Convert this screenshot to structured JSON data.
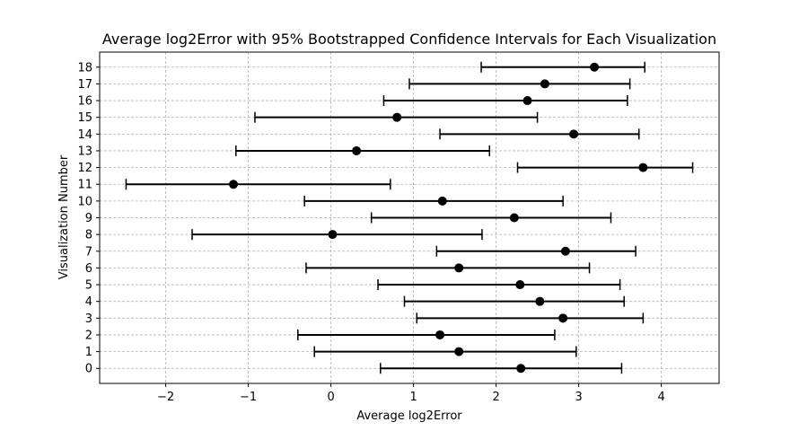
{
  "chart_data": {
    "type": "errorbar",
    "title": "Average log2Error with 95% Bootstrapped Confidence Intervals for Each Visualization",
    "xlabel": "Average log2Error",
    "ylabel": "Visualization Number",
    "xlim": [
      -2.8,
      4.7
    ],
    "ylim": [
      -0.9,
      18.9
    ],
    "x_ticks": [
      -2,
      -1,
      0,
      1,
      2,
      3,
      4
    ],
    "x_tick_labels": [
      "−2",
      "−1",
      "0",
      "1",
      "2",
      "3",
      "4"
    ],
    "grid": true,
    "points": [
      {
        "y": 0,
        "y_label": "0",
        "mean": 2.3,
        "lower": 0.6,
        "upper": 3.52
      },
      {
        "y": 1,
        "y_label": "1",
        "mean": 1.55,
        "lower": -0.2,
        "upper": 2.97
      },
      {
        "y": 2,
        "y_label": "2",
        "mean": 1.32,
        "lower": -0.4,
        "upper": 2.71
      },
      {
        "y": 3,
        "y_label": "3",
        "mean": 2.81,
        "lower": 1.04,
        "upper": 3.78
      },
      {
        "y": 4,
        "y_label": "4",
        "mean": 2.53,
        "lower": 0.89,
        "upper": 3.55
      },
      {
        "y": 5,
        "y_label": "5",
        "mean": 2.29,
        "lower": 0.57,
        "upper": 3.5
      },
      {
        "y": 6,
        "y_label": "6",
        "mean": 1.55,
        "lower": -0.3,
        "upper": 3.13
      },
      {
        "y": 7,
        "y_label": "7",
        "mean": 2.84,
        "lower": 1.28,
        "upper": 3.69
      },
      {
        "y": 8,
        "y_label": "8",
        "mean": 0.02,
        "lower": -1.68,
        "upper": 1.83
      },
      {
        "y": 9,
        "y_label": "9",
        "mean": 2.22,
        "lower": 0.49,
        "upper": 3.39
      },
      {
        "y": 10,
        "y_label": "10",
        "mean": 1.35,
        "lower": -0.32,
        "upper": 2.81
      },
      {
        "y": 11,
        "y_label": "11",
        "mean": -1.18,
        "lower": -2.48,
        "upper": 0.72
      },
      {
        "y": 12,
        "y_label": "12",
        "mean": 3.78,
        "lower": 2.26,
        "upper": 4.38
      },
      {
        "y": 13,
        "y_label": "13",
        "mean": 0.31,
        "lower": -1.15,
        "upper": 1.92
      },
      {
        "y": 14,
        "y_label": "14",
        "mean": 2.94,
        "lower": 1.32,
        "upper": 3.73
      },
      {
        "y": 15,
        "y_label": "15",
        "mean": 0.8,
        "lower": -0.92,
        "upper": 2.5
      },
      {
        "y": 16,
        "y_label": "16",
        "mean": 2.38,
        "lower": 0.64,
        "upper": 3.59
      },
      {
        "y": 17,
        "y_label": "17",
        "mean": 2.59,
        "lower": 0.95,
        "upper": 3.62
      },
      {
        "y": 18,
        "y_label": "18",
        "mean": 3.19,
        "lower": 1.82,
        "upper": 3.8
      }
    ]
  }
}
